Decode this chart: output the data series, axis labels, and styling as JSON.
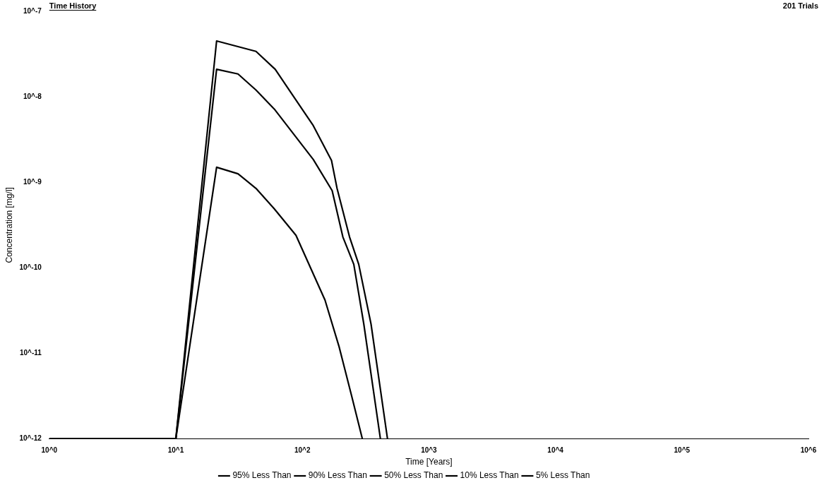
{
  "chart_data": {
    "type": "line",
    "title": "Time History",
    "xlabel": "Time [Years]",
    "ylabel": "Concentration [mg/l]",
    "annotations": [
      "201 Trials"
    ],
    "log": "xy",
    "grid": false,
    "legend": "bottom",
    "marker": "none",
    "line_style": "solid",
    "xlim": [
      1,
      1000000
    ],
    "ylim": [
      1e-12,
      1e-07
    ],
    "xticks": [
      {
        "value": 1,
        "label": "10^0"
      },
      {
        "value": 10,
        "label": "10^1"
      },
      {
        "value": 100,
        "label": "10^2"
      },
      {
        "value": 1000,
        "label": "10^3"
      },
      {
        "value": 10000,
        "label": "10^4"
      },
      {
        "value": 100000,
        "label": "10^5"
      },
      {
        "value": 1000000,
        "label": "10^6"
      }
    ],
    "yticks": [
      {
        "value": 1e-12,
        "label": "10^-12"
      },
      {
        "value": 1e-11,
        "label": "10^-11"
      },
      {
        "value": 1e-10,
        "label": "10^-10"
      },
      {
        "value": 1e-09,
        "label": "10^-9"
      },
      {
        "value": 1e-08,
        "label": "10^-8"
      },
      {
        "value": 1e-07,
        "label": "10^-7"
      }
    ],
    "series": [
      {
        "name": "95% Less Than",
        "color": "#000000",
        "x": [
          1,
          10,
          21,
          43,
          61,
          88,
          122,
          170,
          188,
          236,
          279,
          349,
          471
        ],
        "values": [
          1e-12,
          1e-12,
          4.5e-08,
          3.4e-08,
          2.1e-08,
          9.4e-09,
          4.6e-09,
          1.8e-09,
          8.5e-10,
          2.3e-10,
          1.1e-10,
          2.2e-11,
          1e-12
        ]
      },
      {
        "name": "90% Less Than",
        "color": "#000000",
        "x": [
          1,
          10,
          21,
          31,
          43,
          60,
          122,
          172,
          209,
          255,
          306,
          414
        ],
        "values": [
          1e-12,
          1e-12,
          2.1e-08,
          1.85e-08,
          1.2e-08,
          7.2e-09,
          1.85e-09,
          8e-10,
          2.3e-10,
          1.1e-10,
          2.2e-11,
          1e-12
        ]
      },
      {
        "name": "50% Less Than",
        "color": "#000000",
        "x": [
          1,
          10,
          21,
          31,
          43,
          60,
          89,
          151,
          195,
          245,
          298
        ],
        "values": [
          1e-12,
          1e-12,
          1.5e-09,
          1.26e-09,
          8.5e-10,
          4.9e-10,
          2.4e-10,
          4.2e-11,
          1.2e-11,
          3.2e-12,
          1e-12
        ]
      },
      {
        "name": "10% Less Than",
        "color": "#000000"
      },
      {
        "name": "5% Less Than",
        "color": "#000000"
      }
    ]
  }
}
